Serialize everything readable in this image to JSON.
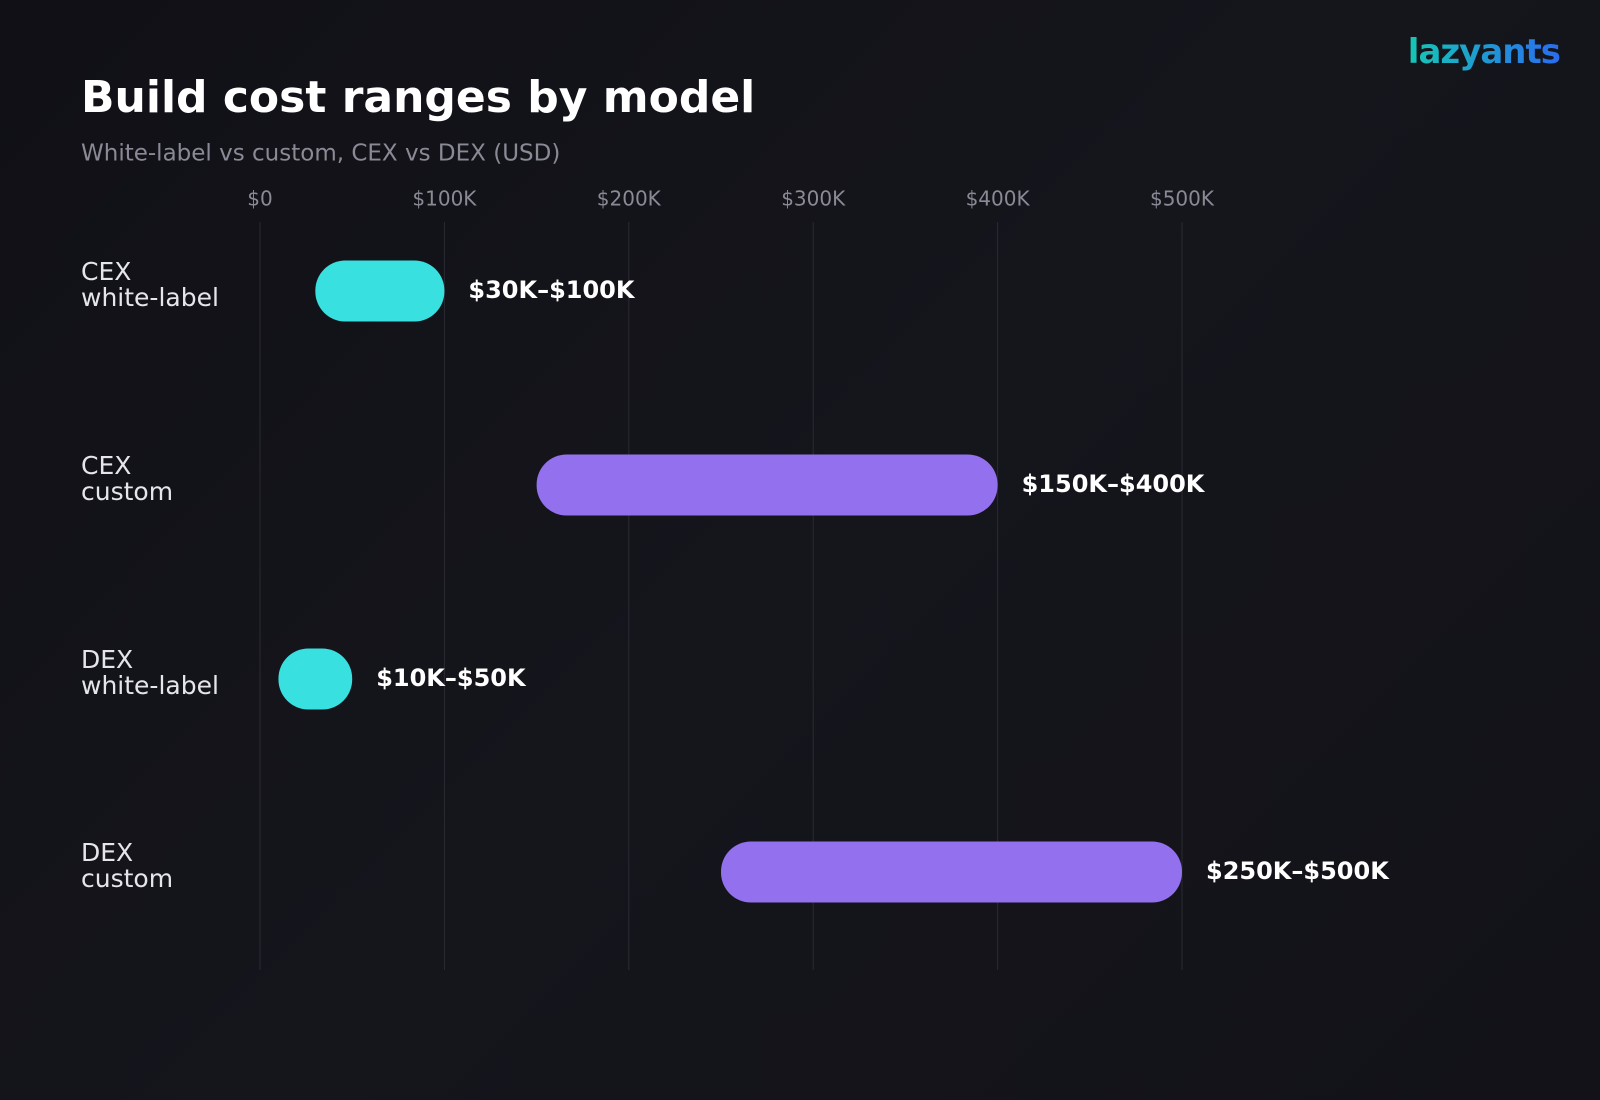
{
  "brand": "lazyants",
  "chart_data": {
    "type": "range_bar",
    "title": "Build cost ranges by model",
    "subtitle": "White-label vs custom, CEX vs DEX (USD)",
    "categories": [
      "CEX\nwhite-label",
      "CEX\ncustom",
      "DEX\nwhite-label",
      "DEX\ncustom"
    ],
    "low": [
      30000,
      150000,
      10000,
      250000
    ],
    "high": [
      100000,
      400000,
      50000,
      500000
    ],
    "value_labels": [
      "$30K–$100K",
      "$150K–$400K",
      "$10K–$50K",
      "$250K–$500K"
    ],
    "colors": [
      "#38e0e0",
      "#9370ee",
      "#38e0e0",
      "#9370ee"
    ],
    "xlim": [
      0,
      500000
    ],
    "xticks": [
      {
        "value": 0,
        "label": "$0"
      },
      {
        "value": 100000,
        "label": "$100K"
      },
      {
        "value": 200000,
        "label": "$200K"
      },
      {
        "value": 300000,
        "label": "$300K"
      },
      {
        "value": 400000,
        "label": "$400K"
      },
      {
        "value": 500000,
        "label": "$500K"
      }
    ],
    "grid": true
  }
}
